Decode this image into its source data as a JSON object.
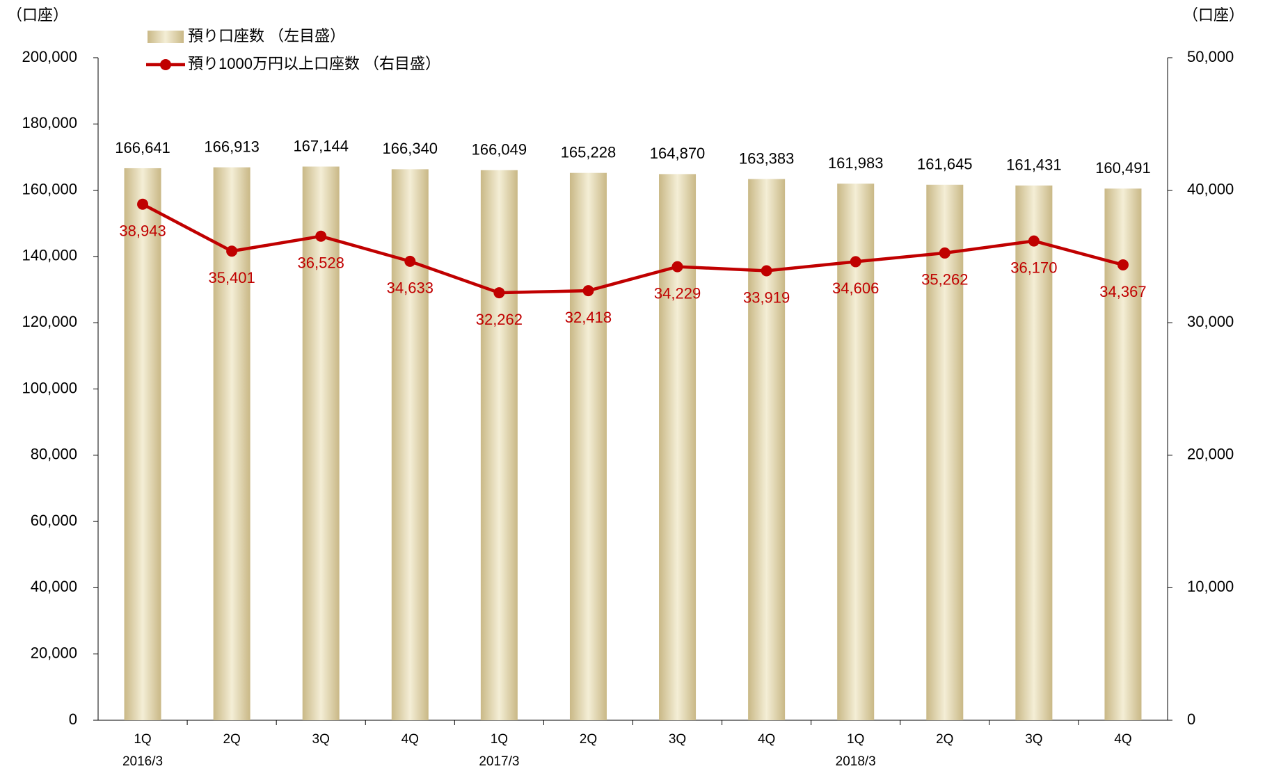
{
  "chart_data": {
    "type": "bar_line",
    "y_axis_label": "（口座）",
    "y2_axis_label": "（口座）",
    "legend": "top-left",
    "categories": [
      "1Q",
      "2Q",
      "3Q",
      "4Q",
      "1Q",
      "2Q",
      "3Q",
      "4Q",
      "1Q",
      "2Q",
      "3Q",
      "4Q"
    ],
    "category_groups": [
      "2016/3",
      null,
      null,
      null,
      "2017/3",
      null,
      null,
      null,
      "2018/3",
      null,
      null,
      null
    ],
    "series": [
      {
        "name": "預り口座数 （左目盛）",
        "type": "bar",
        "color": "#d4c597",
        "values": [
          166641,
          166913,
          167144,
          166340,
          166049,
          165228,
          164870,
          163383,
          161983,
          161645,
          161431,
          160491
        ],
        "value_labels": [
          "166,641",
          "166,913",
          "167,144",
          "166,340",
          "166,049",
          "165,228",
          "164,870",
          "163,383",
          "161,983",
          "161,645",
          "161,431",
          "160,491"
        ]
      },
      {
        "name": "預り1000万円以上口座数 （右目盛）",
        "type": "line",
        "axis": "y2",
        "color": "#c00000",
        "values": [
          38943,
          35401,
          36528,
          34633,
          32262,
          32418,
          34229,
          33919,
          34606,
          35262,
          36170,
          34367
        ],
        "value_labels": [
          "38,943",
          "35,401",
          "36,528",
          "34,633",
          "32,262",
          "32,418",
          "34,229",
          "33,919",
          "34,606",
          "35,262",
          "36,170",
          "34,367"
        ]
      }
    ],
    "ylim": [
      0,
      200000
    ],
    "yticks": [
      0,
      {
        "value": 20000,
        "label": "20,000"
      },
      {
        "value": 40000,
        "label": "40,000"
      },
      {
        "value": 60000,
        "label": "60,000"
      },
      {
        "value": 80000,
        "label": "80,000"
      },
      {
        "value": 100000,
        "label": "100,000"
      },
      {
        "value": 120000,
        "label": "120,000"
      },
      {
        "value": 140000,
        "label": "140,000"
      },
      {
        "value": 160000,
        "label": "160,000"
      },
      {
        "value": 180000,
        "label": "180,000"
      },
      {
        "value": 200000,
        "label": "200,000"
      }
    ],
    "y2lim": [
      0,
      50000
    ],
    "y2ticks": [
      0,
      {
        "value": 10000,
        "label": "10,000"
      },
      {
        "value": 20000,
        "label": "20,000"
      },
      {
        "value": 30000,
        "label": "30,000"
      },
      {
        "value": 40000,
        "label": "40,000"
      },
      {
        "value": 50000,
        "label": "50,000"
      }
    ],
    "grid": false
  }
}
